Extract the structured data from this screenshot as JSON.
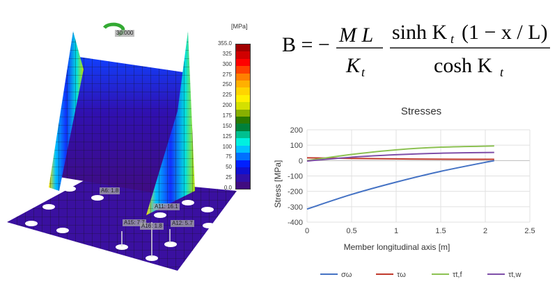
{
  "fem_view": {
    "rotation_label": "30.000",
    "unit": "[MPa]",
    "scale_ticks": [
      "355.0",
      "325",
      "300",
      "275",
      "250",
      "225",
      "200",
      "175",
      "150",
      "125",
      "100",
      "75",
      "50",
      "25",
      "0.0"
    ],
    "scale_colors": [
      "#a00000",
      "#d00000",
      "#ff0000",
      "#ff4000",
      "#ff8000",
      "#ffb000",
      "#ffd400",
      "#fff000",
      "#d4e000",
      "#88b000",
      "#2a7a00",
      "#00803a",
      "#00c090",
      "#00f0e0",
      "#00c0ff",
      "#0070ff",
      "#0020ff",
      "#1010d0",
      "#3010a8",
      "#400c80"
    ],
    "annotations": [
      {
        "text": "A6: 1.8"
      },
      {
        "text": "A11: 16.1"
      },
      {
        "text": "A15: 7.7"
      },
      {
        "text": "A16: 1.8"
      },
      {
        "text": "A12: 5.7"
      }
    ]
  },
  "formula": {
    "lhs": "B = −",
    "num1": "M  L",
    "den1": "K",
    "num2": "sinh K",
    "num2_tail": "(1 − x / L)",
    "den2": "cosh K",
    "subscript": "t"
  },
  "chart_data": {
    "type": "line",
    "title": "Stresses",
    "xlabel": "Member longitudinal axis [m]",
    "ylabel": "Stress [MPa]",
    "xlim": [
      0,
      2.5
    ],
    "ylim": [
      -400,
      200
    ],
    "xticks": [
      "0",
      "0.5",
      "1",
      "1.5",
      "2",
      "2.5"
    ],
    "yticks": [
      "200",
      "100",
      "0",
      "-100",
      "-200",
      "-300",
      "-400"
    ],
    "grid": true,
    "legend": "bottom",
    "x": [
      0,
      0.5,
      1.0,
      1.5,
      2.1
    ],
    "series": [
      {
        "name": "σω",
        "color": "#4472c4",
        "values": [
          -315,
          -220,
          -140,
          -70,
          0
        ]
      },
      {
        "name": "τω",
        "color": "#c0392b",
        "values": [
          18,
          14,
          11,
          9,
          8
        ]
      },
      {
        "name": "τt,f",
        "color": "#8cc152",
        "values": [
          0,
          40,
          70,
          87,
          95
        ]
      },
      {
        "name": "τt,w",
        "color": "#7f4fa8",
        "values": [
          -3,
          22,
          38,
          48,
          53
        ]
      }
    ]
  }
}
